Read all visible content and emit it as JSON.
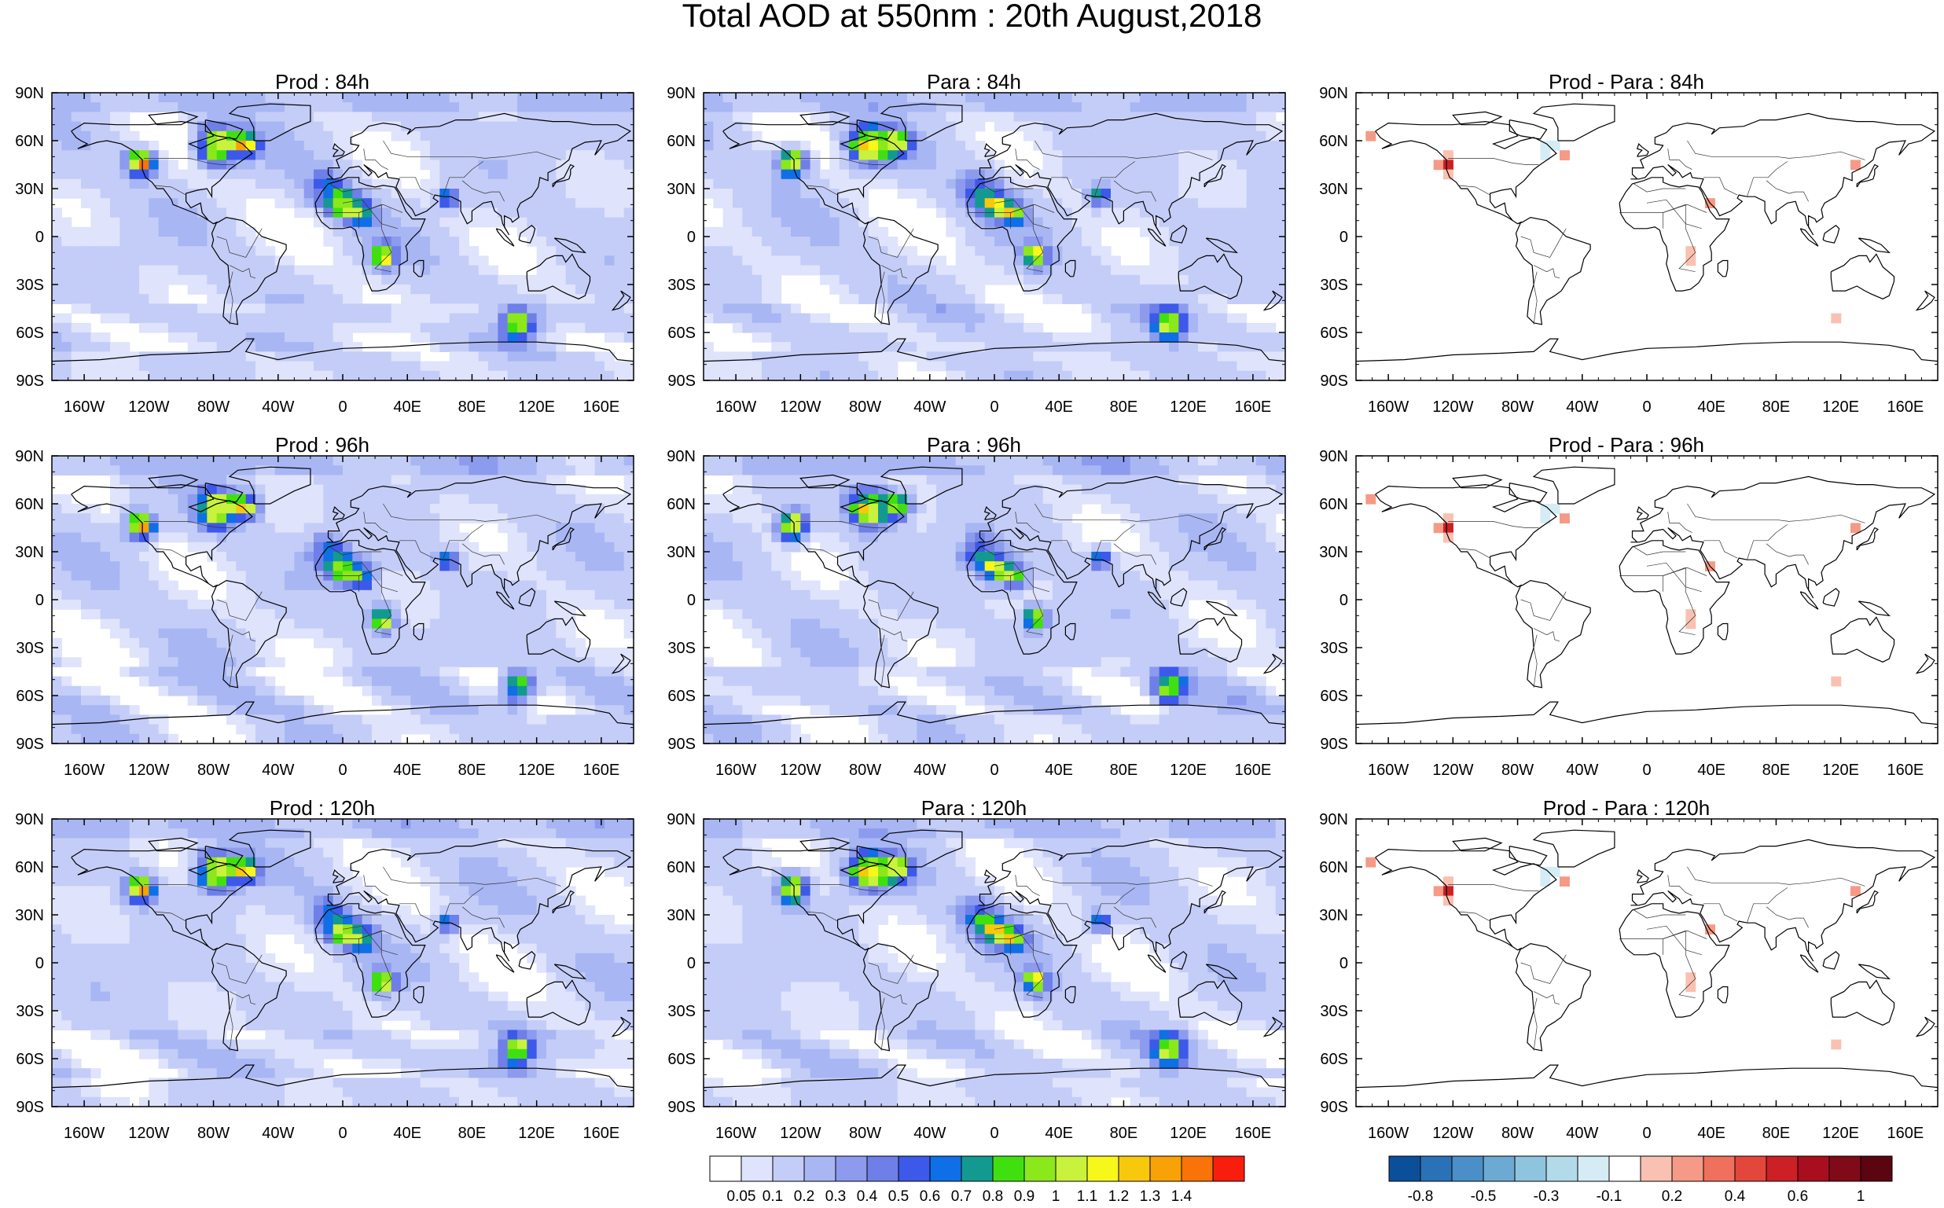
{
  "title": "Total AOD at 550nm : 20th August,2018",
  "panels": [
    {
      "title": "Prod : 84h",
      "kind": "aod"
    },
    {
      "title": "Para : 84h",
      "kind": "aod"
    },
    {
      "title": "Prod - Para : 84h",
      "kind": "diff"
    },
    {
      "title": "Prod : 96h",
      "kind": "aod"
    },
    {
      "title": "Para : 96h",
      "kind": "aod"
    },
    {
      "title": "Prod - Para : 96h",
      "kind": "diff"
    },
    {
      "title": "Prod : 120h",
      "kind": "aod"
    },
    {
      "title": "Para : 120h",
      "kind": "aod"
    },
    {
      "title": "Prod - Para : 120h",
      "kind": "diff"
    }
  ],
  "axes": {
    "lat_labels": [
      "90N",
      "60N",
      "30N",
      "0",
      "30S",
      "60S",
      "90S"
    ],
    "lat_values": [
      90,
      60,
      30,
      0,
      -30,
      -60,
      -90
    ],
    "lon_labels": [
      "160W",
      "120W",
      "80W",
      "40W",
      "0",
      "40E",
      "80E",
      "120E",
      "160E"
    ],
    "lon_values": [
      -160,
      -120,
      -80,
      -40,
      0,
      40,
      80,
      120,
      160
    ],
    "xlim": [
      -180,
      180
    ],
    "ylim": [
      -90,
      90
    ]
  },
  "chart_data": [
    {
      "type": "heatmap",
      "name": "aod",
      "colorbar_levels": [
        "0.05",
        "0.1",
        "0.2",
        "0.3",
        "0.4",
        "0.5",
        "0.6",
        "0.7",
        "0.8",
        "0.9",
        "1",
        "1.1",
        "1.2",
        "1.3",
        "1.4"
      ],
      "colors": [
        "#ffffff",
        "#dfe3fb",
        "#c4cdf7",
        "#a8b6f3",
        "#8c9bee",
        "#6f7fe8",
        "#3c59ea",
        "#0f6fe6",
        "#139a90",
        "#40e010",
        "#8be81a",
        "#c8f23c",
        "#f7f71a",
        "#f8c80c",
        "#f8a208",
        "#f87308",
        "#f81d0c"
      ]
    },
    {
      "type": "heatmap",
      "name": "difference",
      "colorbar_levels": [
        "-0.8",
        "-0.5",
        "-0.3",
        "-0.1",
        "0.2",
        "0.4",
        "0.6",
        "1"
      ],
      "colors": [
        "#0b4f9a",
        "#2a72b7",
        "#4b8fc8",
        "#6caad4",
        "#8fc4de",
        "#b3dae9",
        "#d5ecf5",
        "#ffffff",
        "#f9c1b1",
        "#f59a86",
        "#ef705c",
        "#e3463a",
        "#cc2026",
        "#a90e1e",
        "#800a18",
        "#5a0510"
      ]
    }
  ]
}
